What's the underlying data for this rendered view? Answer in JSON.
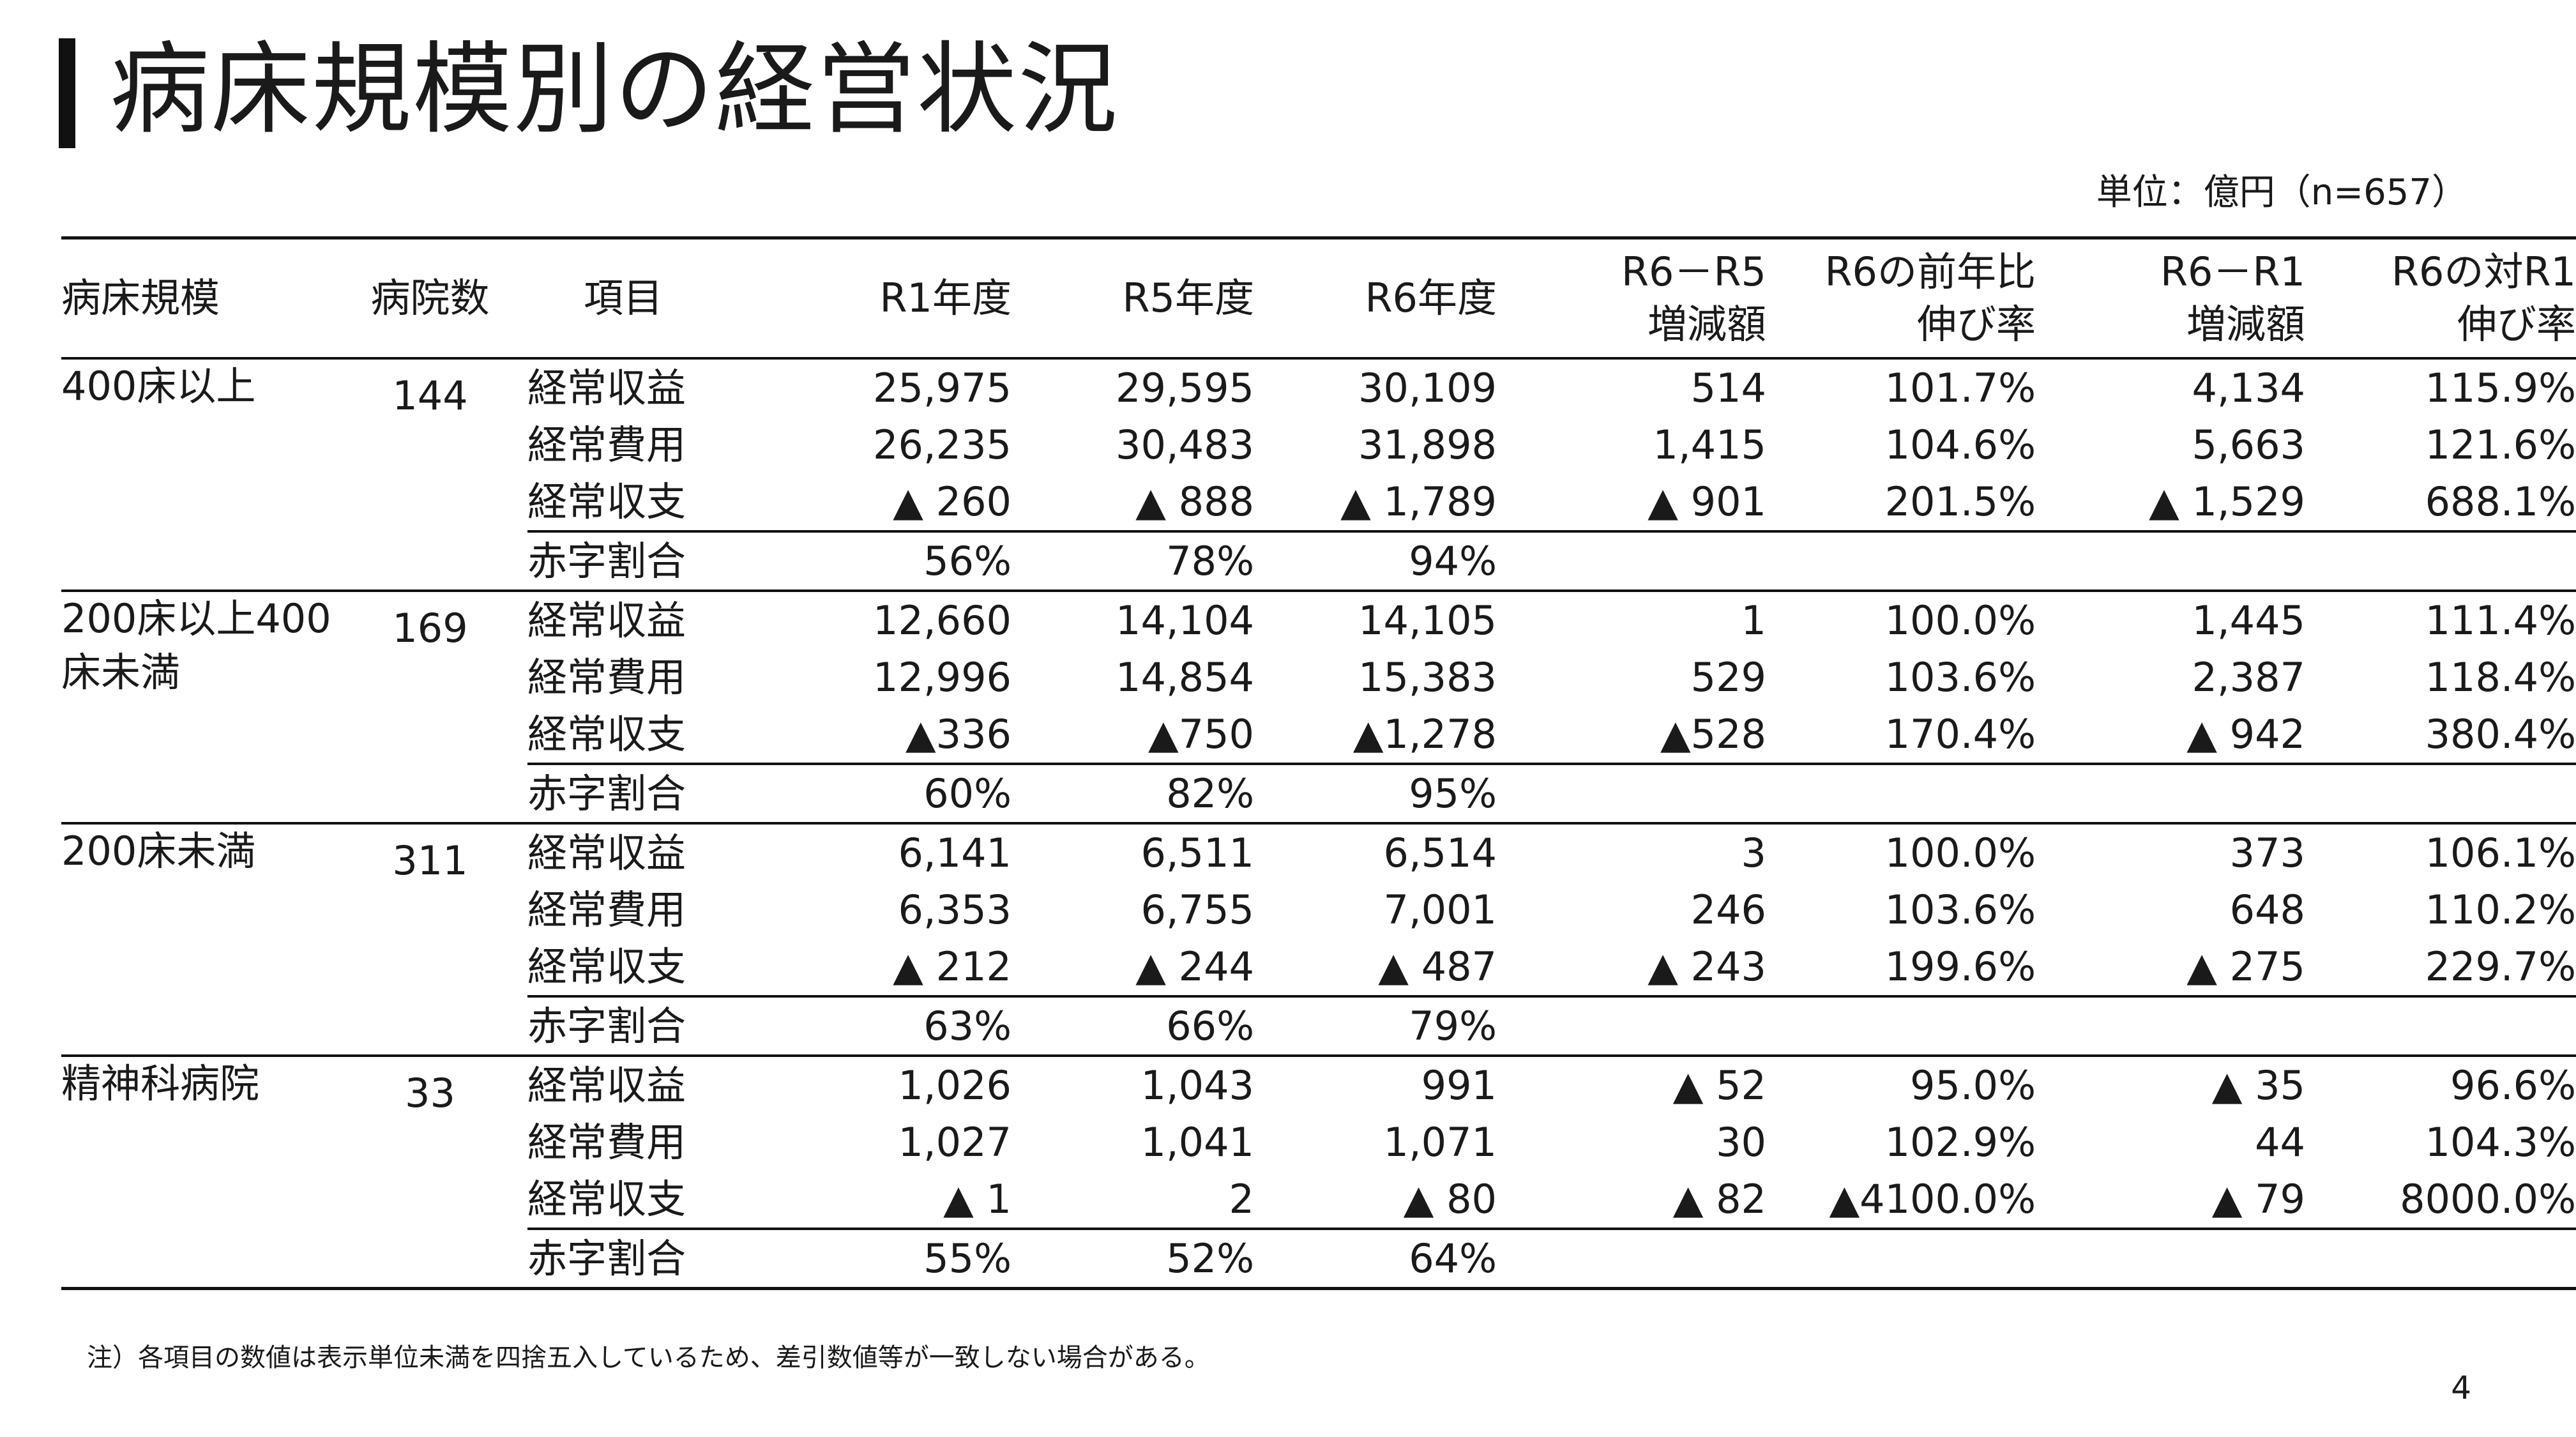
{
  "title": "病床規模別の経営状況",
  "unit_label": "単位：億円（n=657）",
  "header": {
    "scale": "病床規模",
    "count": "病院数",
    "item": "項目",
    "r1": "R1年度",
    "r5": "R5年度",
    "r6": "R6年度",
    "diff_r6r5_l1": "R6－R5",
    "diff_r6r5_l2": "増減額",
    "yoy_l1": "R6の前年比",
    "yoy_l2": "伸び率",
    "diff_r6r1_l1": "R6－R1",
    "diff_r6r1_l2": "増減額",
    "vs_r1_l1": "R6の対R1",
    "vs_r1_l2": "伸び率"
  },
  "groups": [
    {
      "name": "400床以上",
      "count": "144",
      "rows": [
        [
          "経常収益",
          "25,975",
          "29,595",
          "30,109",
          "514",
          "101.7%",
          "4,134",
          "115.9%"
        ],
        [
          "経常費用",
          "26,235",
          "30,483",
          "31,898",
          "1,415",
          "104.6%",
          "5,663",
          "121.6%"
        ],
        [
          "経常収支",
          "▲ 260",
          "▲ 888",
          "▲ 1,789",
          "▲ 901",
          "201.5%",
          "▲ 1,529",
          "688.1%"
        ],
        [
          "赤字割合",
          "56%",
          "78%",
          "94%",
          "",
          "",
          "",
          ""
        ]
      ]
    },
    {
      "name": "200床以上400床未満",
      "count": "169",
      "rows": [
        [
          "経常収益",
          "12,660",
          "14,104",
          "14,105",
          "1",
          "100.0%",
          "1,445",
          "111.4%"
        ],
        [
          "経常費用",
          "12,996",
          "14,854",
          "15,383",
          "529",
          "103.6%",
          "2,387",
          "118.4%"
        ],
        [
          "経常収支",
          "▲336",
          "▲750",
          "▲1,278",
          "▲528",
          "170.4%",
          "▲ 942",
          "380.4%"
        ],
        [
          "赤字割合",
          "60%",
          "82%",
          "95%",
          "",
          "",
          "",
          ""
        ]
      ]
    },
    {
      "name": "200床未満",
      "count": "311",
      "rows": [
        [
          "経常収益",
          "6,141",
          "6,511",
          "6,514",
          "3",
          "100.0%",
          "373",
          "106.1%"
        ],
        [
          "経常費用",
          "6,353",
          "6,755",
          "7,001",
          "246",
          "103.6%",
          "648",
          "110.2%"
        ],
        [
          "経常収支",
          "▲ 212",
          "▲ 244",
          "▲ 487",
          "▲ 243",
          "199.6%",
          "▲ 275",
          "229.7%"
        ],
        [
          "赤字割合",
          "63%",
          "66%",
          "79%",
          "",
          "",
          "",
          ""
        ]
      ]
    },
    {
      "name": "精神科病院",
      "count": "33",
      "rows": [
        [
          "経常収益",
          "1,026",
          "1,043",
          "991",
          "▲ 52",
          "95.0%",
          "▲ 35",
          "96.6%"
        ],
        [
          "経常費用",
          "1,027",
          "1,041",
          "1,071",
          "30",
          "102.9%",
          "44",
          "104.3%"
        ],
        [
          "経常収支",
          "▲ 1",
          "2",
          "▲ 80",
          "▲ 82",
          "▲4100.0%",
          "▲ 79",
          "8000.0%"
        ],
        [
          "赤字割合",
          "55%",
          "52%",
          "64%",
          "",
          "",
          "",
          ""
        ]
      ]
    }
  ],
  "note": "注）各項目の数値は表示単位未満を四捨五入しているため、差引数値等が一致しない場合がある。",
  "page_number": "4"
}
